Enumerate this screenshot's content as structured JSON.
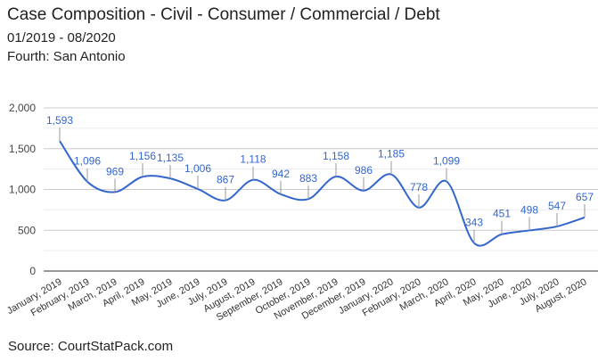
{
  "chart_data": {
    "type": "line",
    "title": "Case Composition - Civil - Consumer / Commercial / Debt",
    "subtitle": "01/2019 - 08/2020",
    "subtitle2": "Fourth: San Antonio",
    "source": "Source: CourtStatPack.com",
    "categories": [
      "January, 2019",
      "February, 2019",
      "March, 2019",
      "April, 2019",
      "May, 2019",
      "June, 2019",
      "July, 2019",
      "August, 2019",
      "September, 2019",
      "October, 2019",
      "November, 2019",
      "December, 2019",
      "January, 2020",
      "February, 2020",
      "March, 2020",
      "April, 2020",
      "May, 2020",
      "June, 2020",
      "July, 2020",
      "August, 2020"
    ],
    "values": [
      1593,
      1096,
      969,
      1156,
      1135,
      1006,
      867,
      1118,
      942,
      883,
      1158,
      986,
      1185,
      778,
      1099,
      343,
      451,
      498,
      547,
      657
    ],
    "value_labels": [
      "1,593",
      "1,096",
      "969",
      "1,156",
      "1,135",
      "1,006",
      "867",
      "1,118",
      "942",
      "883",
      "1,158",
      "986",
      "1,185",
      "778",
      "1,099",
      "343",
      "451",
      "498",
      "547",
      "657"
    ],
    "ylim": [
      0,
      2000
    ],
    "yticks": [
      0,
      500,
      1000,
      1500,
      2000
    ],
    "ytick_labels": [
      "0",
      "500",
      "1,000",
      "1,500",
      "2,000"
    ],
    "grid": true,
    "legend": "none",
    "line_color": "#3366cc"
  }
}
